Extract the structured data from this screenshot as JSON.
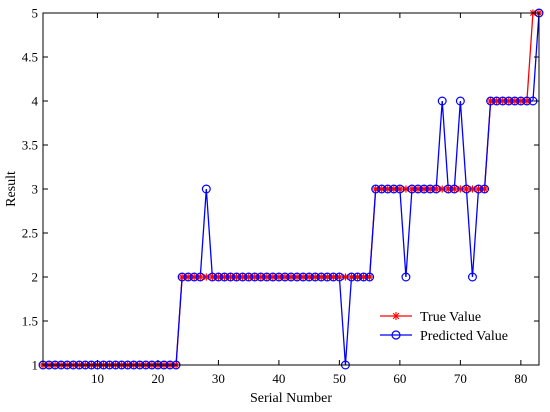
{
  "chart_data": {
    "type": "line",
    "xlabel": "Serial Number",
    "ylabel": "Result",
    "xlim": [
      1,
      83
    ],
    "ylim": [
      1,
      5
    ],
    "xticks": [
      10,
      20,
      30,
      40,
      50,
      60,
      70,
      80
    ],
    "yticks": [
      1,
      1.5,
      2,
      2.5,
      3,
      3.5,
      4,
      4.5,
      5
    ],
    "grid": false,
    "legend_position": "bottom-right",
    "series": [
      {
        "name": "True Value",
        "color": "#ff0000",
        "marker": "asterisk",
        "values": [
          1,
          1,
          1,
          1,
          1,
          1,
          1,
          1,
          1,
          1,
          1,
          1,
          1,
          1,
          1,
          1,
          1,
          1,
          1,
          1,
          1,
          1,
          1,
          2,
          2,
          2,
          2,
          2,
          2,
          2,
          2,
          2,
          2,
          2,
          2,
          2,
          2,
          2,
          2,
          2,
          2,
          2,
          2,
          2,
          2,
          2,
          2,
          2,
          2,
          2,
          2,
          2,
          2,
          2,
          2,
          3,
          3,
          3,
          3,
          3,
          3,
          3,
          3,
          3,
          3,
          3,
          3,
          3,
          3,
          3,
          3,
          3,
          3,
          3,
          4,
          4,
          4,
          4,
          4,
          4,
          4,
          5,
          5
        ]
      },
      {
        "name": "Predicted Value",
        "color": "#0000ff",
        "marker": "circle",
        "values": [
          1,
          1,
          1,
          1,
          1,
          1,
          1,
          1,
          1,
          1,
          1,
          1,
          1,
          1,
          1,
          1,
          1,
          1,
          1,
          1,
          1,
          1,
          1,
          2,
          2,
          2,
          2,
          3,
          2,
          2,
          2,
          2,
          2,
          2,
          2,
          2,
          2,
          2,
          2,
          2,
          2,
          2,
          2,
          2,
          2,
          2,
          2,
          2,
          2,
          2,
          1,
          2,
          2,
          2,
          2,
          3,
          3,
          3,
          3,
          3,
          2,
          3,
          3,
          3,
          3,
          3,
          4,
          3,
          3,
          4,
          3,
          2,
          3,
          3,
          4,
          4,
          4,
          4,
          4,
          4,
          4,
          4,
          5
        ]
      }
    ]
  }
}
